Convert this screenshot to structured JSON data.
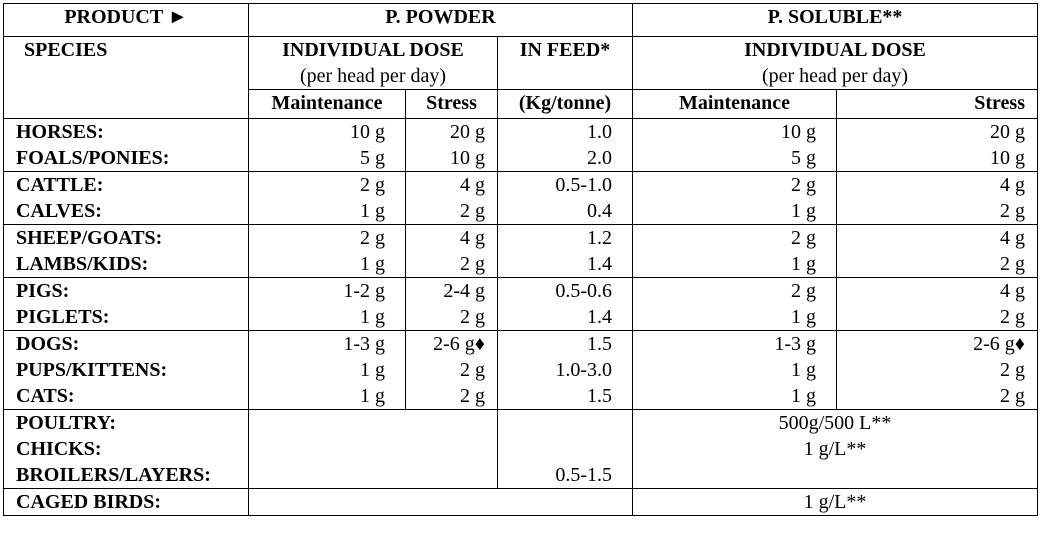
{
  "header": {
    "product": "PRODUCT ►",
    "powder": "P. POWDER",
    "soluble": "P. SOLUBLE**",
    "species": "SPECIES",
    "individual_dose": "INDIVIDUAL DOSE",
    "per_head": "(per head per day)",
    "in_feed": "IN FEED*",
    "maintenance": "Maintenance",
    "stress": "Stress",
    "kg_tonne": "(Kg/tonne)",
    "sol_individual_dose": "INDIVIDUAL DOSE",
    "sol_per_head": "(per head per day)",
    "sol_maintenance": "Maintenance",
    "sol_stress": "Stress"
  },
  "groups": [
    {
      "species": [
        "HORSES:",
        "FOALS/PONIES:"
      ],
      "pm": [
        "10 g",
        "5  g"
      ],
      "ps": [
        "20 g",
        "10 g"
      ],
      "feed": [
        "1.0",
        "2.0"
      ],
      "sm": [
        "10 g",
        "5 g"
      ],
      "ss": [
        "20 g",
        "10 g"
      ]
    },
    {
      "species": [
        "CATTLE:",
        "CALVES:"
      ],
      "pm": [
        "2 g",
        "1 g"
      ],
      "ps": [
        "4 g",
        "2 g"
      ],
      "feed": [
        "0.5-1.0",
        "0.4"
      ],
      "sm": [
        "2 g",
        "1 g"
      ],
      "ss": [
        "4 g",
        "2 g"
      ]
    },
    {
      "species": [
        "SHEEP/GOATS:",
        "LAMBS/KIDS:"
      ],
      "pm": [
        "2 g",
        "1 g"
      ],
      "ps": [
        "4 g",
        "2 g"
      ],
      "feed": [
        "1.2",
        "1.4"
      ],
      "sm": [
        "2 g",
        "1 g"
      ],
      "ss": [
        "4 g",
        "2 g"
      ]
    },
    {
      "species": [
        "PIGS:",
        "PIGLETS:"
      ],
      "pm": [
        "1-2 g",
        "1 g"
      ],
      "ps": [
        "2-4 g",
        "2 g"
      ],
      "feed": [
        "0.5-0.6",
        "1.4"
      ],
      "sm": [
        "2 g",
        "1 g"
      ],
      "ss": [
        "4 g",
        "2 g"
      ]
    },
    {
      "species": [
        "DOGS:",
        "PUPS/KITTENS:",
        "CATS:"
      ],
      "pm": [
        "1-3 g",
        "1 g",
        "1 g"
      ],
      "ps": [
        "2-6 g♦",
        "2 g",
        "2 g"
      ],
      "feed": [
        "1.5",
        "1.0-3.0",
        "1.5"
      ],
      "sm": [
        "1-3 g",
        "1 g",
        "1 g"
      ],
      "ss": [
        "2-6 g♦",
        "2 g",
        "2 g"
      ]
    }
  ],
  "poultry": {
    "species": [
      "POULTRY:",
      "CHICKS:",
      "BROILERS/LAYERS:"
    ],
    "feed": [
      "",
      "",
      "0.5-1.5"
    ],
    "soluble": [
      "500g/500 L**",
      "1 g/L**",
      ""
    ]
  },
  "caged": {
    "species": "CAGED BIRDS:",
    "soluble": "1 g/L**"
  }
}
